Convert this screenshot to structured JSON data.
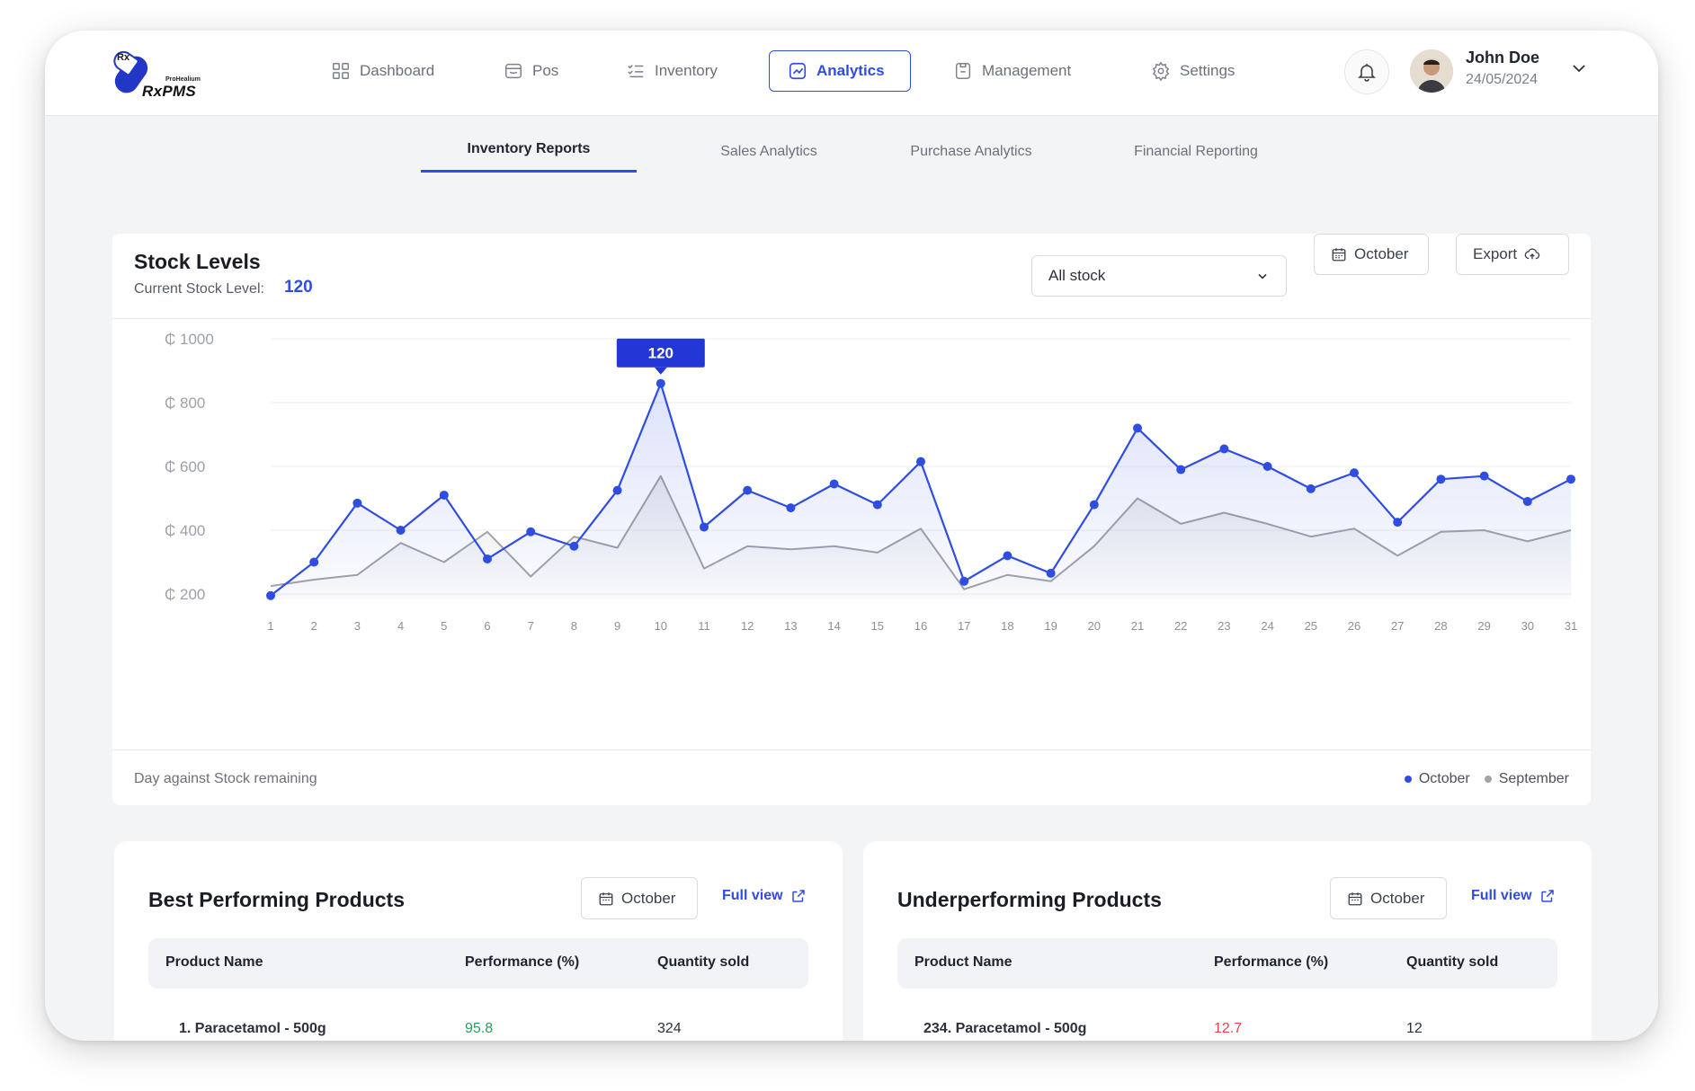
{
  "app": {
    "brand": "RxPMS",
    "brand_small": "ProHealium"
  },
  "nav": {
    "items": [
      {
        "label": "Dashboard",
        "icon": "grid-icon"
      },
      {
        "label": "Pos",
        "icon": "store-icon"
      },
      {
        "label": "Inventory",
        "icon": "checklist-icon"
      },
      {
        "label": "Analytics",
        "icon": "chart-icon",
        "active": true
      },
      {
        "label": "Management",
        "icon": "management-icon"
      },
      {
        "label": "Settings",
        "icon": "gear-icon"
      }
    ]
  },
  "user": {
    "name": "John Doe",
    "date": "24/05/2024"
  },
  "subtabs": [
    "Inventory Reports",
    "Sales Analytics",
    "Purchase Analytics",
    "Financial Reporting"
  ],
  "stock": {
    "title": "Stock Levels",
    "current_label": "Current Stock Level:",
    "current_value": "120",
    "filter_value": "All stock",
    "month_button": "October",
    "export_button": "Export",
    "footer_label": "Day against Stock remaining",
    "tooltip_value": "120"
  },
  "colors": {
    "accent": "#2f4de0",
    "october": "#2f4de0",
    "september": "#a0a3a8",
    "positive": "#22a35a",
    "negative": "#e0454f"
  },
  "chart_data": {
    "type": "line",
    "x": [
      1,
      2,
      3,
      4,
      5,
      6,
      7,
      8,
      9,
      10,
      11,
      12,
      13,
      14,
      15,
      16,
      17,
      18,
      19,
      20,
      21,
      22,
      23,
      24,
      25,
      26,
      27,
      28,
      29,
      30,
      31
    ],
    "y_ticks": [
      "₵ 1000",
      "₵ 800",
      "₵ 600",
      "₵ 400",
      "₵ 200"
    ],
    "ylim": [
      200,
      1000
    ],
    "series": [
      {
        "name": "October",
        "color": "#2f4de0",
        "values": [
          195,
          300,
          485,
          400,
          510,
          310,
          395,
          350,
          525,
          860,
          410,
          525,
          470,
          545,
          480,
          615,
          240,
          320,
          265,
          480,
          720,
          590,
          655,
          600,
          530,
          580,
          425,
          560,
          570,
          490,
          560
        ]
      },
      {
        "name": "September",
        "color": "#a0a3a8",
        "values": [
          225,
          245,
          260,
          360,
          300,
          395,
          255,
          380,
          345,
          570,
          280,
          350,
          340,
          350,
          330,
          405,
          215,
          260,
          240,
          350,
          500,
          420,
          455,
          420,
          380,
          405,
          320,
          395,
          400,
          365,
          400
        ]
      }
    ]
  },
  "best": {
    "title": "Best Performing Products",
    "month_button": "October",
    "full_view": "Full view",
    "headers": [
      "Product Name",
      "Performance (%)",
      "Quantity sold"
    ],
    "rows": [
      {
        "name": "1. Paracetamol - 500g",
        "performance": "95.8",
        "qty": "324"
      }
    ]
  },
  "under": {
    "title": "Underperforming Products",
    "month_button": "October",
    "full_view": "Full view",
    "headers": [
      "Product Name",
      "Performance (%)",
      "Quantity sold"
    ],
    "rows": [
      {
        "name": "234. Paracetamol - 500g",
        "performance": "12.7",
        "qty": "12"
      }
    ]
  }
}
